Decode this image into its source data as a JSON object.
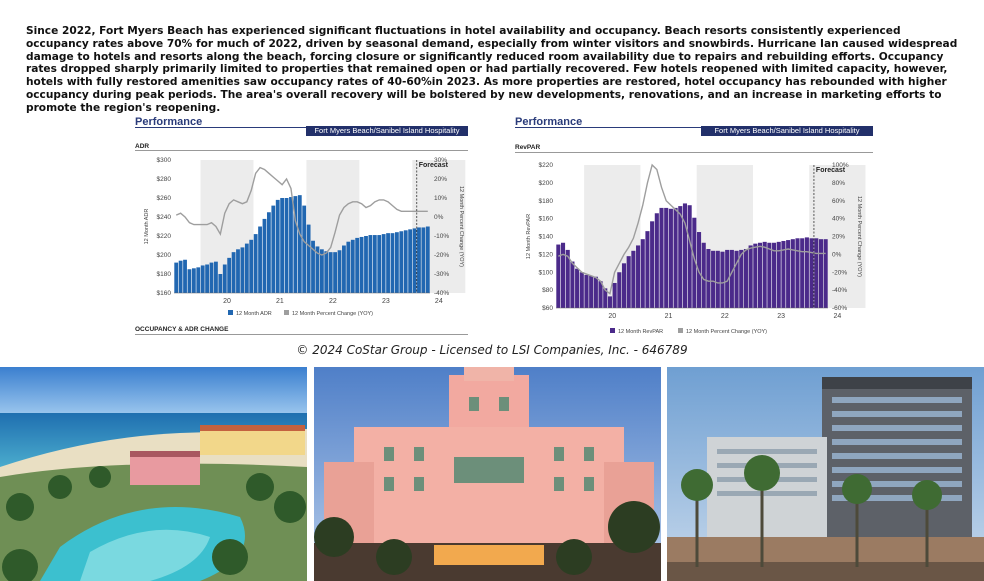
{
  "intro_text": "Since 2022, Fort Myers Beach has experienced significant fluctuations in hotel availability and occupancy. Beach resorts consistently experienced occupancy rates above 70% for much of 2022, driven by seasonal demand, especially from winter visitors and snowbirds. Hurricane Ian caused widespread damage to hotels and resorts along the beach, forcing closure or significantly reduced room availability due to repairs and rebuilding efforts. Occupancy rates dropped sharply primarily limited to properties that remained open or had partially recovered. Few hotels reopened with limited capacity, however, hotels with fully restored amenities saw occupancy rates of 40-60%in 2023. As more properties are restored, hotel occupancy has rebounded with higher occupancy during peak periods. The area's overall recovery will be bolstered by new developments, renovations, and an increase in marketing efforts to promote the region's reopening.",
  "copyright": "© 2024 CoStar Group - Licensed to LSI Companies, Inc. - 646789",
  "left_panel": {
    "title": "Performance",
    "banner": "Fort Myers Beach/Sanibel Island Hospitality",
    "chart_label": "ADR",
    "bottom_label": "OCCUPANCY & ADR CHANGE"
  },
  "right_panel": {
    "title": "Performance",
    "banner": "Fort Myers Beach/Sanibel Island Hospitality",
    "chart_label": "RevPAR"
  },
  "photos": [
    {
      "subject": "beachfront resort with pool"
    },
    {
      "subject": "pink beach hotel tower"
    },
    {
      "subject": "modern high-rise hotel"
    }
  ],
  "chart_data": [
    {
      "type": "bar",
      "title": "",
      "ylabel": "12 Month ADR",
      "y2label": "12 Month Percent Change (YOY)",
      "yticks": [
        "$300",
        "$280",
        "$260",
        "$240",
        "$220",
        "$200",
        "$180",
        "$160"
      ],
      "y2ticks": [
        "30%",
        "20%",
        "10%",
        "0%",
        "-10%",
        "-20%",
        "-30%",
        "-40%"
      ],
      "ylim": [
        160,
        300
      ],
      "y2lim": [
        -40,
        30
      ],
      "xticks": [
        "20",
        "21",
        "22",
        "23",
        "24",
        "25"
      ],
      "annotation": "Forecast",
      "shaded_years": [
        "20",
        "22",
        "24"
      ],
      "bar_color": "#2167b1",
      "line_color": "#9e9e9e",
      "series": [
        {
          "name": "12 Month ADR",
          "kind": "bar",
          "values": [
            192,
            194,
            195,
            185,
            186,
            187,
            189,
            190,
            192,
            193,
            180,
            190,
            197,
            203,
            206,
            208,
            212,
            216,
            222,
            230,
            238,
            245,
            252,
            258,
            260,
            260,
            261,
            262,
            263,
            252,
            232,
            215,
            209,
            206,
            204,
            203,
            203,
            205,
            210,
            214,
            216,
            218,
            219,
            220,
            221,
            221,
            221,
            222,
            223,
            223,
            224,
            225,
            226,
            227,
            228,
            229,
            229,
            230
          ]
        },
        {
          "name": "12 Month Percent Change (YOY)",
          "kind": "line",
          "values": [
            1,
            2,
            0,
            -3,
            -4,
            -4,
            -4,
            -4,
            -3,
            -5,
            -9,
            2,
            7,
            9,
            8,
            7,
            8,
            14,
            23,
            26,
            25,
            23,
            21,
            19,
            17,
            20,
            15,
            -2,
            -9,
            -13,
            -15,
            -17,
            -19,
            -20,
            -19,
            -16,
            -8,
            1,
            5,
            7,
            8,
            8,
            7,
            5,
            6,
            8,
            9,
            9,
            8,
            6,
            4,
            3,
            3,
            3,
            3,
            3,
            3,
            3
          ]
        }
      ],
      "legend": [
        "12 Month ADR",
        "12 Month Percent Change (YOY)"
      ],
      "legend_position": "bottom"
    },
    {
      "type": "bar",
      "title": "",
      "ylabel": "12 Month RevPAR",
      "y2label": "12 Month Percent Change (YOY)",
      "yticks": [
        "$220",
        "$200",
        "$180",
        "$160",
        "$140",
        "$120",
        "$100",
        "$80",
        "$60"
      ],
      "y2ticks": [
        "100%",
        "80%",
        "60%",
        "40%",
        "20%",
        "0%",
        "-20%",
        "-40%",
        "-60%"
      ],
      "ylim": [
        60,
        220
      ],
      "y2lim": [
        -60,
        100
      ],
      "xticks": [
        "20",
        "21",
        "22",
        "23",
        "24",
        "25"
      ],
      "annotation": "Forecast",
      "shaded_years": [
        "20",
        "22",
        "24"
      ],
      "bar_color": "#4b2a8a",
      "line_color": "#9e9e9e",
      "series": [
        {
          "name": "12 Month RevPAR",
          "kind": "bar",
          "values": [
            131,
            133,
            125,
            112,
            104,
            100,
            97,
            96,
            95,
            90,
            82,
            73,
            88,
            100,
            110,
            118,
            124,
            130,
            137,
            146,
            157,
            166,
            172,
            172,
            171,
            172,
            174,
            177,
            175,
            161,
            145,
            133,
            126,
            124,
            124,
            123,
            125,
            125,
            124,
            125,
            126,
            130,
            132,
            133,
            134,
            133,
            133,
            134,
            135,
            136,
            137,
            138,
            138,
            139,
            138,
            138,
            137,
            137
          ]
        },
        {
          "name": "12 Month Percent Change (YOY)",
          "kind": "line",
          "values": [
            -2,
            0,
            -2,
            -10,
            -15,
            -20,
            -22,
            -24,
            -26,
            -30,
            -40,
            -44,
            -20,
            -10,
            0,
            8,
            18,
            35,
            55,
            80,
            100,
            95,
            75,
            60,
            55,
            50,
            45,
            35,
            15,
            -5,
            -20,
            -28,
            -30,
            -30,
            -32,
            -32,
            -30,
            -20,
            -10,
            0,
            5,
            7,
            8,
            9,
            8,
            6,
            4,
            4,
            5,
            6,
            5,
            4,
            3,
            3,
            2,
            1,
            1,
            1
          ]
        }
      ],
      "legend": [
        "12 Month RevPAR",
        "12 Month Percent Change (YOY)"
      ],
      "legend_position": "bottom"
    }
  ]
}
